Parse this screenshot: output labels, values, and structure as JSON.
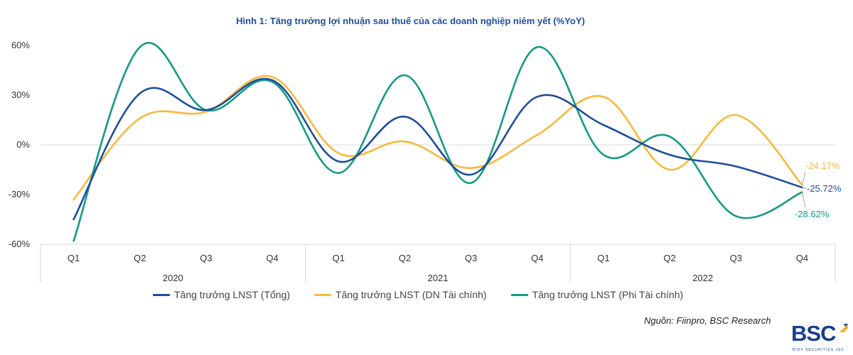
{
  "chart_data": {
    "type": "line",
    "title": "Hình 1: Tăng trưởng lợi nhuận sau thuế của các doanh nghiệp niêm yết (%YoY)",
    "categories": [
      "Q1",
      "Q2",
      "Q3",
      "Q4",
      "Q1",
      "Q2",
      "Q3",
      "Q4",
      "Q1",
      "Q2",
      "Q3",
      "Q4"
    ],
    "groups": [
      "2020",
      "2021",
      "2022"
    ],
    "ylim": [
      -60,
      60
    ],
    "yticks": [
      60,
      30,
      0,
      -30,
      -60
    ],
    "ytick_labels": [
      "60%",
      "30%",
      "0%",
      "-30%",
      "-60%"
    ],
    "grid": "zero-line only",
    "legend_position": "bottom",
    "series": [
      {
        "name": "Tăng trưởng LNST (Tổng)",
        "color": "#1f4e9c",
        "values": [
          -45,
          31,
          21,
          39,
          -10,
          17,
          -18,
          29,
          12,
          -6,
          -13,
          -25.72
        ],
        "end_label": "-25.72%"
      },
      {
        "name": "Tăng trưởng LNST (DN Tài chính)",
        "color": "#f9b93b",
        "values": [
          -33,
          16,
          20,
          41,
          -5,
          2,
          -14,
          6,
          29,
          -15,
          18,
          -24.17
        ],
        "end_label": "-24.17%"
      },
      {
        "name": "Tăng trưởng LNST (Phi Tài chính)",
        "color": "#129b84",
        "values": [
          -58,
          59,
          21,
          38,
          -17,
          42,
          -23,
          59,
          -6,
          5,
          -43,
          -28.62
        ],
        "end_label": "-28.62%"
      }
    ]
  },
  "source": "Nguồn: Fiinpro, BSC Research",
  "logo": {
    "text": "BSC",
    "subtext": "BIDV SECURITIES JSC"
  }
}
